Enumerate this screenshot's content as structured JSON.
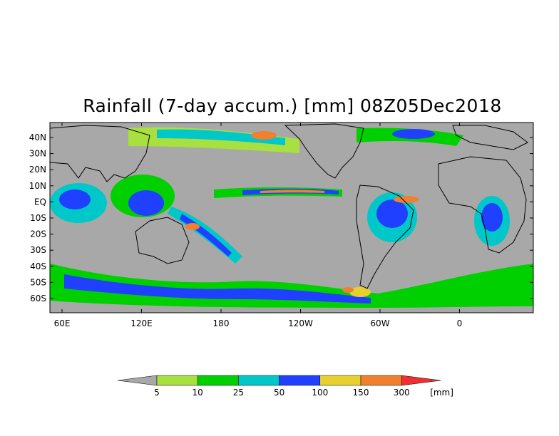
{
  "title": "Rainfall (7-day accum.) [mm] 08Z05Dec2018",
  "map": {
    "lat_labels": [
      "40N",
      "30N",
      "20N",
      "10N",
      "EQ",
      "10S",
      "20S",
      "30S",
      "40S",
      "50S",
      "60S"
    ],
    "lon_labels": [
      "60E",
      "120E",
      "180",
      "120W",
      "60W",
      "0"
    ],
    "background_color": "#a8a8a8",
    "coastline_color": "#000000"
  },
  "colorbar": {
    "unit": "[mm]",
    "tick_labels": [
      "5",
      "10",
      "25",
      "50",
      "100",
      "150",
      "300"
    ],
    "colors": [
      "#a8a8a8",
      "#a8e040",
      "#00d000",
      "#00c8c8",
      "#2040ff",
      "#e8d030",
      "#f08030",
      "#f03030"
    ]
  }
}
